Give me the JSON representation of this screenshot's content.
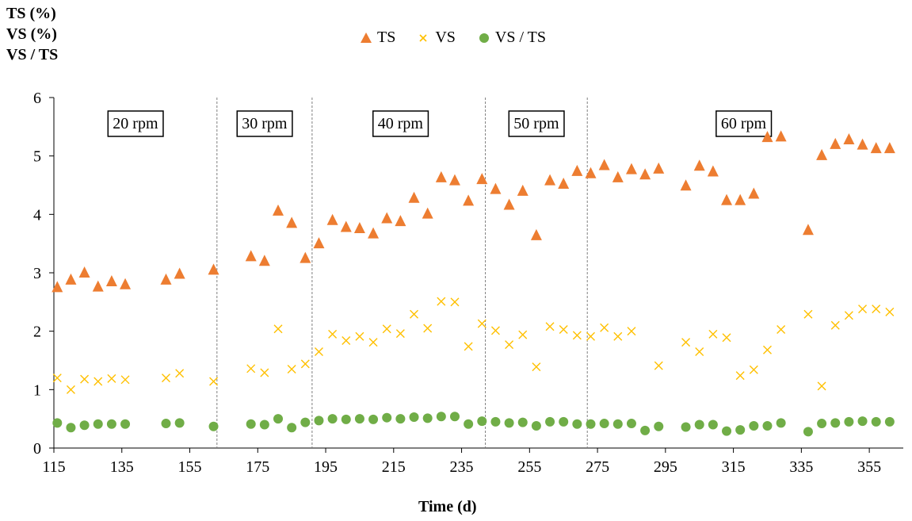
{
  "chart_data": {
    "type": "scatter",
    "y_axis_title": [
      "TS (%)",
      "VS (%)",
      "VS / TS"
    ],
    "xlabel": "Time (d)",
    "xlim": [
      115,
      365
    ],
    "ylim": [
      0,
      6
    ],
    "x_ticks": [
      "115",
      "135",
      "155",
      "175",
      "195",
      "215",
      "235",
      "255",
      "275",
      "295",
      "315",
      "335",
      "355"
    ],
    "y_ticks": [
      "0",
      "1",
      "2",
      "3",
      "4",
      "5",
      "6"
    ],
    "phase_dividers": [
      163,
      191,
      242,
      272
    ],
    "phases": [
      {
        "label": "20 rpm",
        "x_center": 139
      },
      {
        "label": "30 rpm",
        "x_center": 177
      },
      {
        "label": "40 rpm",
        "x_center": 217
      },
      {
        "label": "50 rpm",
        "x_center": 257
      },
      {
        "label": "60 rpm",
        "x_center": 318
      }
    ],
    "legend_position": "top-center",
    "series": [
      {
        "name": "TS",
        "marker": "triangle",
        "color": "#ED7D31",
        "x": [
          116,
          120,
          124,
          128,
          132,
          136,
          148,
          152,
          162,
          173,
          177,
          181,
          185,
          189,
          193,
          197,
          201,
          205,
          209,
          213,
          217,
          221,
          225,
          229,
          233,
          237,
          241,
          245,
          249,
          253,
          257,
          261,
          265,
          269,
          273,
          277,
          281,
          285,
          289,
          293,
          301,
          305,
          309,
          313,
          317,
          321,
          325,
          329,
          337,
          341,
          345,
          349,
          353,
          357,
          361
        ],
        "y": [
          2.75,
          2.88,
          3.0,
          2.76,
          2.85,
          2.8,
          2.88,
          2.98,
          3.05,
          3.28,
          3.2,
          4.06,
          3.85,
          3.25,
          3.5,
          3.9,
          3.78,
          3.76,
          3.67,
          3.93,
          3.88,
          4.28,
          4.01,
          4.63,
          4.58,
          4.23,
          4.6,
          4.43,
          4.16,
          4.4,
          3.64,
          4.58,
          4.52,
          4.74,
          4.7,
          4.84,
          4.63,
          4.77,
          4.68,
          4.78,
          4.49,
          4.83,
          4.73,
          4.24,
          4.24,
          4.35,
          5.32,
          5.33,
          3.73,
          5.01,
          5.2,
          5.28,
          5.19,
          5.13,
          5.13
        ]
      },
      {
        "name": "VS",
        "marker": "x",
        "color": "#FFC000",
        "x": [
          116,
          120,
          124,
          128,
          132,
          136,
          148,
          152,
          162,
          173,
          177,
          181,
          185,
          189,
          193,
          197,
          201,
          205,
          209,
          213,
          217,
          221,
          225,
          229,
          233,
          237,
          241,
          245,
          249,
          253,
          257,
          261,
          265,
          269,
          273,
          277,
          281,
          285,
          293,
          301,
          305,
          309,
          313,
          317,
          321,
          325,
          329,
          337,
          341,
          345,
          349,
          353,
          357,
          361
        ],
        "y": [
          1.2,
          1.0,
          1.18,
          1.14,
          1.19,
          1.17,
          1.2,
          1.28,
          1.14,
          1.36,
          1.29,
          2.04,
          1.35,
          1.44,
          1.65,
          1.95,
          1.84,
          1.91,
          1.81,
          2.04,
          1.96,
          2.29,
          2.05,
          2.51,
          2.5,
          1.74,
          2.13,
          2.01,
          1.77,
          1.94,
          1.39,
          2.08,
          2.03,
          1.93,
          1.91,
          2.06,
          1.91,
          2.0,
          1.41,
          1.81,
          1.65,
          1.95,
          1.89,
          1.24,
          1.34,
          1.68,
          2.03,
          2.29,
          1.06,
          2.1,
          2.27,
          2.38,
          2.38,
          2.33
        ]
      },
      {
        "name": "VS / TS",
        "marker": "circle",
        "color": "#70AD47",
        "x": [
          116,
          120,
          124,
          128,
          132,
          136,
          148,
          152,
          162,
          173,
          177,
          181,
          185,
          189,
          193,
          197,
          201,
          205,
          209,
          213,
          217,
          221,
          225,
          229,
          233,
          237,
          241,
          245,
          249,
          253,
          257,
          261,
          265,
          269,
          273,
          277,
          281,
          285,
          289,
          293,
          301,
          305,
          309,
          313,
          317,
          321,
          325,
          329,
          337,
          341,
          345,
          349,
          353,
          357,
          361
        ],
        "y": [
          0.43,
          0.35,
          0.39,
          0.41,
          0.41,
          0.41,
          0.42,
          0.43,
          0.37,
          0.41,
          0.4,
          0.5,
          0.35,
          0.44,
          0.47,
          0.5,
          0.49,
          0.5,
          0.49,
          0.52,
          0.5,
          0.53,
          0.51,
          0.54,
          0.54,
          0.41,
          0.46,
          0.45,
          0.43,
          0.44,
          0.38,
          0.45,
          0.45,
          0.41,
          0.41,
          0.42,
          0.41,
          0.42,
          0.3,
          0.37,
          0.36,
          0.4,
          0.4,
          0.29,
          0.31,
          0.38,
          0.38,
          0.43,
          0.28,
          0.42,
          0.43,
          0.45,
          0.46,
          0.45,
          0.45
        ]
      }
    ]
  }
}
